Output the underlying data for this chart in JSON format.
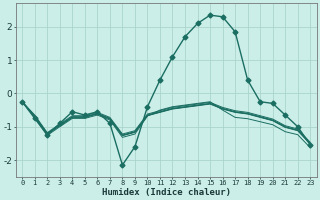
{
  "xlabel": "Humidex (Indice chaleur)",
  "bg_color": "#cceee8",
  "grid_color": "#aad4cc",
  "line_color": "#1a6e62",
  "plot_bg": "#cceee8",
  "xlim": [
    -0.5,
    23.5
  ],
  "ylim": [
    -2.5,
    2.7
  ],
  "xticks": [
    0,
    1,
    2,
    3,
    4,
    5,
    6,
    7,
    8,
    9,
    10,
    11,
    12,
    13,
    14,
    15,
    16,
    17,
    18,
    19,
    20,
    21,
    22,
    23
  ],
  "yticks": [
    -2,
    -1,
    0,
    1,
    2
  ],
  "lines": [
    {
      "x": [
        0,
        1,
        2,
        3,
        4,
        5,
        6,
        7,
        8,
        9,
        10,
        11,
        12,
        13,
        14,
        15,
        16,
        17,
        18,
        19,
        20,
        21,
        22,
        23
      ],
      "y": [
        -0.25,
        -0.75,
        -1.25,
        -0.9,
        -0.55,
        -0.65,
        -0.55,
        -0.9,
        -2.15,
        -1.6,
        -0.4,
        0.4,
        1.1,
        1.7,
        2.1,
        2.35,
        2.3,
        1.85,
        0.4,
        -0.25,
        -0.3,
        -0.65,
        -1.0,
        -1.55
      ],
      "marker": true,
      "lw": 1.0,
      "ms": 2.5
    },
    {
      "x": [
        0,
        1,
        2,
        3,
        4,
        5,
        6,
        7,
        8,
        9,
        10,
        11,
        12,
        13,
        14,
        15,
        16,
        17,
        18,
        19,
        20,
        21,
        22,
        23
      ],
      "y": [
        -0.25,
        -0.7,
        -1.2,
        -0.95,
        -0.7,
        -0.7,
        -0.6,
        -0.75,
        -1.25,
        -1.15,
        -0.65,
        -0.55,
        -0.45,
        -0.4,
        -0.35,
        -0.3,
        -0.45,
        -0.55,
        -0.6,
        -0.7,
        -0.8,
        -1.0,
        -1.1,
        -1.5
      ],
      "marker": false,
      "lw": 0.7,
      "ms": 0
    },
    {
      "x": [
        0,
        1,
        2,
        3,
        4,
        5,
        6,
        7,
        8,
        9,
        10,
        11,
        12,
        13,
        14,
        15,
        16,
        17,
        18,
        19,
        20,
        21,
        22,
        23
      ],
      "y": [
        -0.25,
        -0.7,
        -1.22,
        -0.97,
        -0.72,
        -0.72,
        -0.62,
        -0.77,
        -1.27,
        -1.17,
        -0.67,
        -0.57,
        -0.47,
        -0.42,
        -0.37,
        -0.32,
        -0.47,
        -0.57,
        -0.62,
        -0.72,
        -0.82,
        -1.02,
        -1.12,
        -1.52
      ],
      "marker": false,
      "lw": 0.7,
      "ms": 0
    },
    {
      "x": [
        0,
        1,
        2,
        3,
        4,
        5,
        6,
        7,
        8,
        9,
        10,
        11,
        12,
        13,
        14,
        15,
        16,
        17,
        18,
        19,
        20,
        21,
        22,
        23
      ],
      "y": [
        -0.25,
        -0.65,
        -1.18,
        -0.92,
        -0.67,
        -0.67,
        -0.57,
        -0.72,
        -1.22,
        -1.12,
        -0.62,
        -0.52,
        -0.42,
        -0.37,
        -0.32,
        -0.27,
        -0.42,
        -0.52,
        -0.57,
        -0.67,
        -0.77,
        -0.97,
        -1.07,
        -1.47
      ],
      "marker": false,
      "lw": 0.7,
      "ms": 0
    },
    {
      "x": [
        0,
        1,
        2,
        3,
        4,
        5,
        6,
        7,
        8,
        9,
        10,
        11,
        12,
        13,
        14,
        15,
        16,
        17,
        18,
        19,
        20,
        21,
        22,
        23
      ],
      "y": [
        -0.25,
        -0.68,
        -1.21,
        -0.96,
        -0.71,
        -0.71,
        -0.61,
        -0.76,
        -1.26,
        -1.16,
        -0.66,
        -0.56,
        -0.46,
        -0.41,
        -0.36,
        -0.31,
        -0.46,
        -0.56,
        -0.61,
        -0.71,
        -0.81,
        -1.01,
        -1.11,
        -1.51
      ],
      "marker": false,
      "lw": 0.7,
      "ms": 0
    },
    {
      "x": [
        0,
        1,
        2,
        3,
        4,
        5,
        6,
        7,
        8,
        9,
        10,
        11,
        12,
        13,
        14,
        15,
        16,
        17,
        18,
        19,
        20,
        21,
        22,
        23
      ],
      "y": [
        -0.25,
        -0.72,
        -1.26,
        -1.0,
        -0.75,
        -0.75,
        -0.65,
        -0.8,
        -1.32,
        -1.22,
        -0.68,
        -0.5,
        -0.4,
        -0.35,
        -0.3,
        -0.25,
        -0.5,
        -0.72,
        -0.76,
        -0.85,
        -0.94,
        -1.15,
        -1.24,
        -1.63
      ],
      "marker": false,
      "lw": 0.7,
      "ms": 0
    }
  ]
}
